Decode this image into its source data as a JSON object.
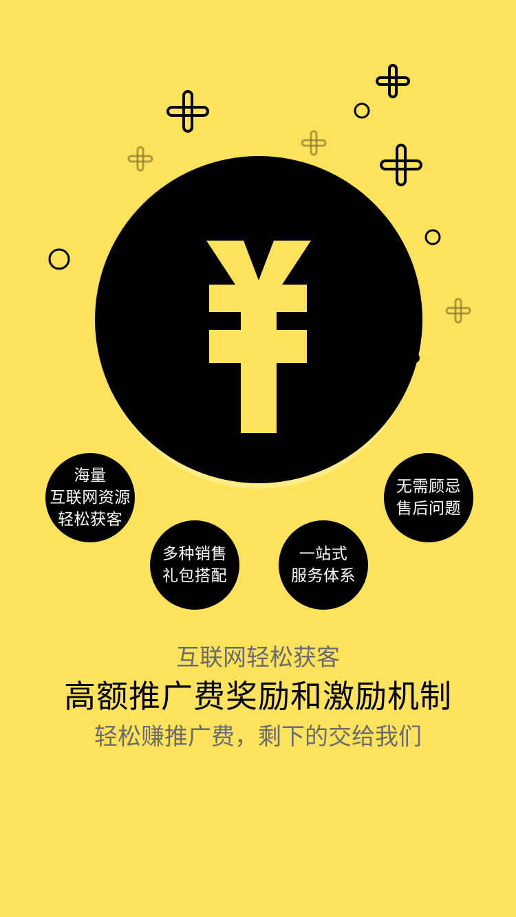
{
  "colors": {
    "background": "#FDE25C",
    "coin": "#000000",
    "yen_symbol": "#FDE25C",
    "bubble_text": "#FFFFFF",
    "subtitle_text": "#6B6B6B",
    "headline_text": "#000000"
  },
  "hero": {
    "symbol": "¥",
    "symbol_icon": "yen-icon"
  },
  "features": [
    {
      "line1": "海量",
      "line2": "互联网资源",
      "line3": "轻松获客"
    },
    {
      "line1": "多种销售",
      "line2": "礼包搭配"
    },
    {
      "line1": "一站式",
      "line2": "服务体系"
    },
    {
      "line1": "无需顾忌",
      "line2": "售后问题"
    }
  ],
  "copy": {
    "subtitle_top": "互联网轻松获客",
    "headline": "高额推广费奖励和激励机制",
    "subtitle_bottom": "轻松赚推广费，剩下的交给我们"
  }
}
